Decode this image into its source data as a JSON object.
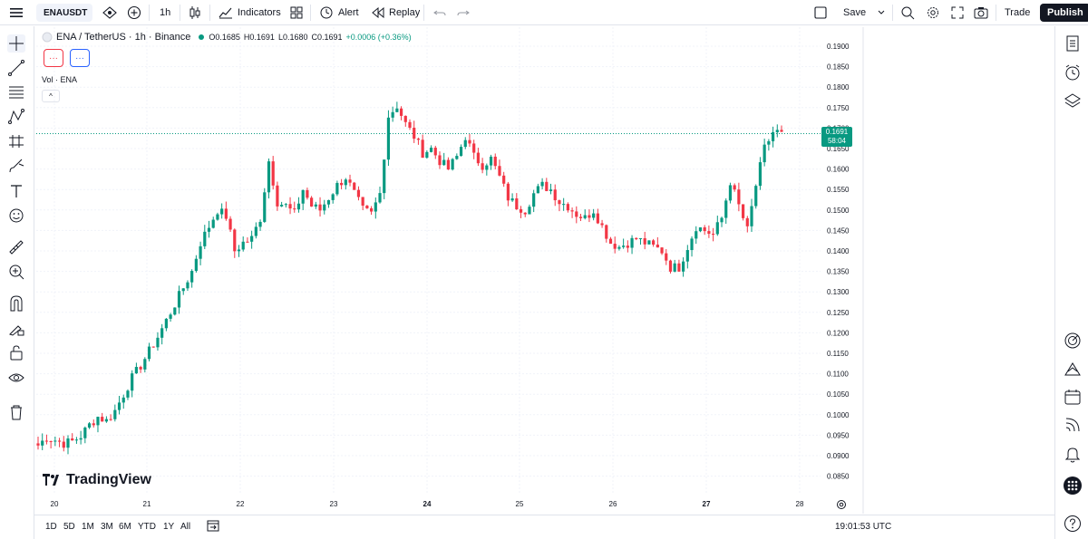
{
  "topbar": {
    "symbol": "ENAUSDT",
    "interval": "1h",
    "indicators_label": "Indicators",
    "alert_label": "Alert",
    "replay_label": "Replay",
    "save_label": "Save",
    "trade_label": "Trade",
    "publish_label": "Publish"
  },
  "legend": {
    "title": "ENA / TetherUS · 1h · Binance",
    "open": "O0.1685",
    "high": "H0.1691",
    "low": "L0.1680",
    "close": "C0.1691",
    "change": "+0.0006 (+0.36%)",
    "btn1": "···",
    "btn2": "···",
    "vol_label": "Vol · ENA",
    "collapse": "^"
  },
  "logo": {
    "text": "TradingView"
  },
  "price_tag": {
    "price": "0.1691",
    "countdown": "58:04"
  },
  "bottom": {
    "ranges": [
      "1D",
      "5D",
      "1M",
      "3M",
      "6M",
      "YTD",
      "1Y",
      "All"
    ],
    "time": "19:01:53 UTC"
  },
  "colors": {
    "up": "#089981",
    "down": "#f23645",
    "grid": "#f0f3fa",
    "text": "#131722"
  },
  "icons": {
    "left": [
      "crosshair-icon",
      "trend-line-icon",
      "fib-icon",
      "pattern-icon",
      "forecast-icon",
      "brush-icon",
      "text-icon",
      "emoji-icon",
      "ruler-icon",
      "zoom-in-icon",
      "magnet-icon",
      "lock-drawings-icon",
      "lock-icon",
      "eye-icon",
      "trash-icon"
    ],
    "right": [
      "watchlist-icon",
      "alerts-clock-icon",
      "layers-icon",
      "target-icon",
      "ideas-icon",
      "calendar-icon",
      "stream-icon",
      "notifications-icon",
      "apps-icon",
      "help-icon"
    ]
  },
  "chart_data": {
    "type": "candlestick",
    "title": "ENA / TetherUS · 1h · Binance",
    "x_labels": [
      "20",
      "21",
      "22",
      "23",
      "24",
      "25",
      "26",
      "27",
      "28"
    ],
    "y_ticks": [
      "0.1900",
      "0.1850",
      "0.1800",
      "0.1750",
      "0.1700",
      "0.1650",
      "0.1600",
      "0.1550",
      "0.1500",
      "0.1450",
      "0.1400",
      "0.1350",
      "0.1300",
      "0.1250",
      "0.1200",
      "0.1150",
      "0.1100",
      "0.1050",
      "0.1000",
      "0.0950",
      "0.0900",
      "0.0850"
    ],
    "ylim": [
      0.0825,
      0.1925
    ],
    "last_price": 0.1691,
    "close_path": [
      [
        0,
        0.0925
      ],
      [
        2,
        0.0945
      ],
      [
        4,
        0.0938
      ],
      [
        6,
        0.093
      ],
      [
        8,
        0.0935
      ],
      [
        10,
        0.0948
      ],
      [
        12,
        0.0975
      ],
      [
        14,
        0.0995
      ],
      [
        16,
        0.0985
      ],
      [
        18,
        0.101
      ],
      [
        20,
        0.105
      ],
      [
        22,
        0.109
      ],
      [
        24,
        0.112
      ],
      [
        26,
        0.1155
      ],
      [
        28,
        0.119
      ],
      [
        30,
        0.123
      ],
      [
        32,
        0.127
      ],
      [
        34,
        0.131
      ],
      [
        36,
        0.135
      ],
      [
        38,
        0.142
      ],
      [
        40,
        0.146
      ],
      [
        42,
        0.15
      ],
      [
        44,
        0.1485
      ],
      [
        46,
        0.14
      ],
      [
        48,
        0.142
      ],
      [
        50,
        0.143
      ],
      [
        52,
        0.148
      ],
      [
        54,
        0.162
      ],
      [
        56,
        0.152
      ],
      [
        58,
        0.151
      ],
      [
        60,
        0.149
      ],
      [
        62,
        0.155
      ],
      [
        64,
        0.151
      ],
      [
        66,
        0.15
      ],
      [
        68,
        0.153
      ],
      [
        70,
        0.156
      ],
      [
        72,
        0.158
      ],
      [
        74,
        0.154
      ],
      [
        76,
        0.15
      ],
      [
        78,
        0.149
      ],
      [
        80,
        0.154
      ],
      [
        82,
        0.173
      ],
      [
        84,
        0.1755
      ],
      [
        86,
        0.171
      ],
      [
        88,
        0.168
      ],
      [
        90,
        0.164
      ],
      [
        92,
        0.165
      ],
      [
        94,
        0.162
      ],
      [
        96,
        0.16
      ],
      [
        98,
        0.163
      ],
      [
        100,
        0.168
      ],
      [
        102,
        0.163
      ],
      [
        104,
        0.161
      ],
      [
        106,
        0.1625
      ],
      [
        108,
        0.158
      ],
      [
        110,
        0.153
      ],
      [
        112,
        0.151
      ],
      [
        114,
        0.15
      ],
      [
        116,
        0.154
      ],
      [
        118,
        0.156
      ],
      [
        120,
        0.155
      ],
      [
        122,
        0.152
      ],
      [
        124,
        0.151
      ],
      [
        126,
        0.149
      ],
      [
        128,
        0.148
      ],
      [
        130,
        0.15
      ],
      [
        132,
        0.146
      ],
      [
        134,
        0.142
      ],
      [
        136,
        0.141
      ],
      [
        138,
        0.142
      ],
      [
        140,
        0.143
      ],
      [
        142,
        0.142
      ],
      [
        144,
        0.141
      ],
      [
        146,
        0.14
      ],
      [
        148,
        0.136
      ],
      [
        150,
        0.136
      ],
      [
        152,
        0.141
      ],
      [
        154,
        0.146
      ],
      [
        156,
        0.145
      ],
      [
        158,
        0.144
      ],
      [
        160,
        0.148
      ],
      [
        162,
        0.157
      ],
      [
        164,
        0.151
      ],
      [
        166,
        0.145
      ],
      [
        168,
        0.156
      ],
      [
        170,
        0.165
      ],
      [
        172,
        0.169
      ],
      [
        174,
        0.1691
      ]
    ]
  }
}
